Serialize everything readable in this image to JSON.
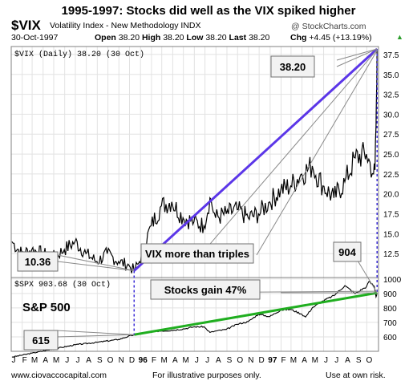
{
  "header": {
    "title": "1995-1997:  Stocks did well as the VIX spiked higher",
    "symbol": "$VIX",
    "full_name": "Volatility Index - New Methodology  INDX",
    "brand": "@ StockCharts.com",
    "date": "30-Oct-1997",
    "open_label": "Open",
    "open": "38.20",
    "high_label": "High",
    "high": "38.20",
    "low_label": "Low",
    "low": "38.20",
    "last_label": "Last",
    "last": "38.20",
    "chg_label": "Chg",
    "chg": "+4.45 (+13.19%)",
    "chg_arrow": "▲"
  },
  "footer": {
    "left": "www.ciovaccocapital.com",
    "middle": "For illustrative purposes only.",
    "right": "Use at own risk."
  },
  "colors": {
    "vix_trend": "#5b36e8",
    "spx_trend": "#1fae1f",
    "marker_line": "#3a2bd6",
    "price": "#000000",
    "grid": "#e2e2e2",
    "frame": "#808080"
  },
  "chart_data": [
    {
      "type": "line",
      "name": "vix-panel",
      "legend": "$VIX (Daily) 38.20 (30 Oct)",
      "ylim": [
        9.5,
        38.5
      ],
      "y_ticks": [
        "12.5",
        "15.0",
        "17.5",
        "20.0",
        "22.5",
        "25.0",
        "27.5",
        "30.0",
        "32.5",
        "35.0",
        "37.5"
      ],
      "y_tick_values": [
        12.5,
        15,
        17.5,
        20,
        22.5,
        25,
        27.5,
        30,
        32.5,
        35,
        37.5
      ],
      "series": [
        {
          "x": [
            "1995-01-03",
            "1995-01-31",
            "1995-02-28",
            "1995-03-31",
            "1995-04-28",
            "1995-05-31",
            "1995-06-30",
            "1995-07-31",
            "1995-08-31",
            "1995-09-29",
            "1995-10-31",
            "1995-11-30",
            "1995-12-14",
            "1995-12-29",
            "1996-01-31",
            "1996-02-29",
            "1996-03-29",
            "1996-04-30",
            "1996-05-31",
            "1996-06-28",
            "1996-07-15",
            "1996-07-31",
            "1996-08-30",
            "1996-09-30",
            "1996-10-31",
            "1996-11-29",
            "1996-12-31",
            "1997-01-31",
            "1997-02-28",
            "1997-03-31",
            "1997-04-30",
            "1997-05-30",
            "1997-06-30",
            "1997-07-31",
            "1997-08-29",
            "1997-09-30",
            "1997-10-20",
            "1997-10-24",
            "1997-10-27",
            "1997-10-28",
            "1997-10-29",
            "1997-10-30"
          ],
          "y": [
            14.0,
            12.5,
            13.0,
            12.5,
            12.0,
            13.0,
            14.0,
            12.5,
            11.5,
            12.5,
            11.5,
            11.0,
            10.36,
            11.5,
            16.0,
            18.5,
            19.0,
            17.0,
            16.5,
            16.0,
            19.5,
            17.0,
            17.5,
            18.0,
            17.0,
            17.5,
            19.0,
            20.5,
            21.0,
            22.5,
            23.5,
            21.0,
            19.5,
            21.5,
            24.5,
            25.0,
            22.5,
            23.0,
            28.5,
            32.0,
            33.75,
            38.2
          ]
        },
        {
          "name": "trend",
          "x": [
            "1995-12-14",
            "1997-10-30"
          ],
          "y": [
            10.36,
            38.2
          ]
        }
      ],
      "annotations": [
        {
          "text": "38.20",
          "kind": "value-box"
        },
        {
          "text": "10.36",
          "kind": "value-box"
        },
        {
          "text": "VIX more than triples",
          "kind": "callout"
        }
      ]
    },
    {
      "type": "line",
      "name": "spx-panel",
      "legend": "$SPX 903.68 (30 Oct)",
      "label": "S&P 500",
      "ylim": [
        500,
        1010
      ],
      "y_ticks": [
        "600",
        "700",
        "800",
        "900",
        "1000"
      ],
      "y_tick_values": [
        600,
        700,
        800,
        900,
        1000
      ],
      "series": [
        {
          "x": [
            "1995-01-03",
            "1995-02-28",
            "1995-04-28",
            "1995-06-30",
            "1995-08-31",
            "1995-10-31",
            "1995-12-14",
            "1996-01-31",
            "1996-02-29",
            "1996-03-29",
            "1996-04-30",
            "1996-05-31",
            "1996-06-28",
            "1996-07-15",
            "1996-07-31",
            "1996-08-30",
            "1996-09-30",
            "1996-10-31",
            "1996-11-29",
            "1996-12-31",
            "1997-01-31",
            "1997-02-28",
            "1997-03-31",
            "1997-04-11",
            "1997-04-30",
            "1997-05-30",
            "1997-06-30",
            "1997-07-31",
            "1997-08-29",
            "1997-09-30",
            "1997-10-07",
            "1997-10-22",
            "1997-10-27",
            "1997-10-30"
          ],
          "y": [
            460,
            487,
            515,
            545,
            562,
            582,
            615,
            636,
            641,
            645,
            654,
            669,
            670,
            630,
            640,
            651,
            687,
            705,
            757,
            740,
            786,
            790,
            757,
            737,
            801,
            848,
            885,
            954,
            899,
            947,
            983,
            950,
            876,
            904
          ]
        },
        {
          "name": "trend",
          "x": [
            "1995-12-14",
            "1997-10-30"
          ],
          "y": [
            615,
            904
          ]
        }
      ],
      "annotations": [
        {
          "text": "904",
          "kind": "value-box"
        },
        {
          "text": "615",
          "kind": "value-box"
        },
        {
          "text": "Stocks gain 47%",
          "kind": "callout"
        }
      ]
    },
    {
      "type": "axis",
      "name": "month-axis",
      "labels": [
        "J",
        "F",
        "M",
        "A",
        "M",
        "J",
        "J",
        "A",
        "S",
        "O",
        "N",
        "D",
        "96",
        "F",
        "M",
        "A",
        "M",
        "J",
        "J",
        "A",
        "S",
        "O",
        "N",
        "D",
        "97",
        "F",
        "M",
        "A",
        "M",
        "J",
        "J",
        "A",
        "S",
        "O"
      ]
    }
  ]
}
